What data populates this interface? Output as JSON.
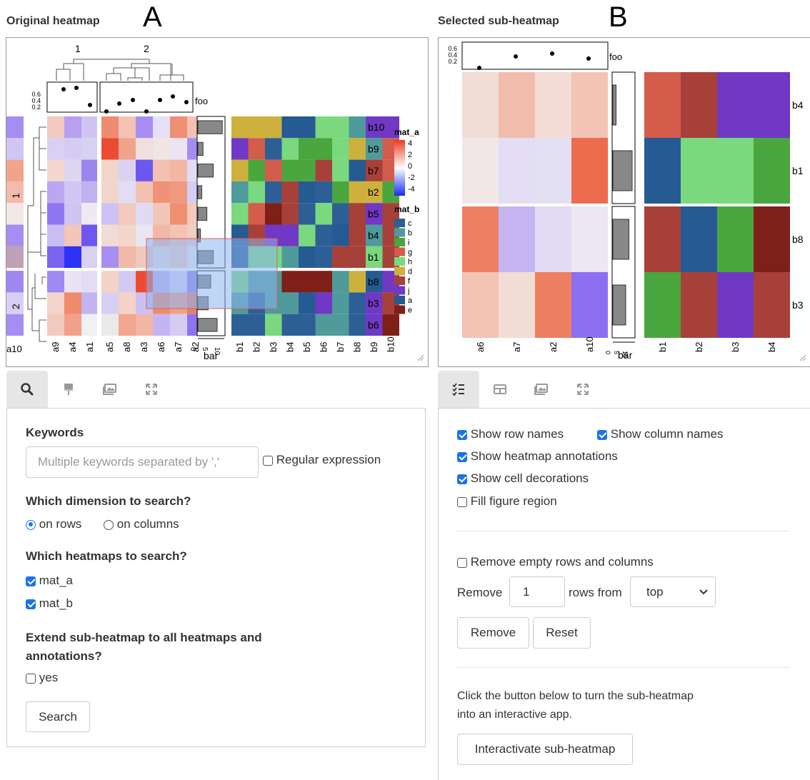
{
  "left": {
    "title": "Original heatmap",
    "panel_letter": "A",
    "tabs": [
      "search-icon",
      "brush-icon",
      "image-icon",
      "expand-icon"
    ],
    "keywords_label": "Keywords",
    "keywords_placeholder": "Multiple keywords separated by ','",
    "regex_label": "Regular expression",
    "dimension_label": "Which dimension to search?",
    "on_rows": "on rows",
    "on_columns": "on columns",
    "heatmaps_label": "Which heatmaps to search?",
    "mat_a": "mat_a",
    "mat_b": "mat_b",
    "extend_label_1": "Extend sub-heatmap to all heatmaps and",
    "extend_label_2": "annotations?",
    "yes": "yes",
    "search_button": "Search"
  },
  "right": {
    "title": "Selected sub-heatmap",
    "panel_letter": "B",
    "tabs": [
      "list-icon",
      "table-icon",
      "image-icon",
      "expand-icon"
    ],
    "show_row_names": "Show row names",
    "show_column_names": "Show column names",
    "show_heatmap_annotations": "Show heatmap annotations",
    "show_cell_decorations": "Show cell decorations",
    "fill_figure_region": "Fill figure region",
    "remove_empty": "Remove empty rows and columns",
    "remove_label": "Remove",
    "remove_value": "1",
    "rows_from": "rows from",
    "from_option": "top",
    "remove_button": "Remove",
    "reset_button": "Reset",
    "info_1": "Click the button below to turn the sub-heatmap",
    "info_2": "into an interactive app.",
    "interactivate_button": "Interactivate sub-heatmap"
  },
  "heatmap_a": {
    "col_split_labels": [
      "1",
      "2"
    ],
    "row_split_labels": [
      "1",
      "2"
    ],
    "foo_label": "foo",
    "foo_ticks": [
      "0.6",
      "0.4",
      "0.2"
    ],
    "bar_label": "bar",
    "bar_ticks": [
      "0",
      "5",
      "10"
    ],
    "cols_a": [
      "a9",
      "a4",
      "a1",
      "a5",
      "a8",
      "a3",
      "a6",
      "a7",
      "a2",
      "a10"
    ],
    "cols_b": [
      "b1",
      "b2",
      "b3",
      "b4",
      "b5",
      "b6",
      "b7",
      "b8",
      "b9",
      "b10"
    ],
    "rows": [
      "b10",
      "b9",
      "b7",
      "b2",
      "b5",
      "b4",
      "b1",
      "b8",
      "b3",
      "b6"
    ],
    "legend_a_title": "mat_a",
    "legend_a_ticks": [
      "4",
      "2",
      "0",
      "-2",
      "-4"
    ],
    "legend_b_title": "mat_b",
    "legend_b_items": [
      {
        "name": "c",
        "color": "#2d5f97"
      },
      {
        "name": "b",
        "color": "#4f9a9a"
      },
      {
        "name": "i",
        "color": "#4aa63e"
      },
      {
        "name": "g",
        "color": "#d35c4a"
      },
      {
        "name": "h",
        "color": "#7ad87e"
      },
      {
        "name": "d",
        "color": "#cdb13c"
      },
      {
        "name": "f",
        "color": "#a8403a"
      },
      {
        "name": "j",
        "color": "#7038c4"
      },
      {
        "name": "a",
        "color": "#265a92"
      },
      {
        "name": "e",
        "color": "#7e1f18"
      }
    ]
  },
  "heatmap_b": {
    "foo_label": "foo",
    "foo_ticks": [
      "0.6",
      "0.4",
      "0.2"
    ],
    "bar_label": "bar",
    "bar_ticks": [
      "0",
      "5",
      "10"
    ],
    "cols_a": [
      "a6",
      "a7",
      "a2",
      "a10"
    ],
    "cols_b": [
      "b1",
      "b2",
      "b3",
      "b4"
    ],
    "rows": [
      "b4",
      "b1",
      "b8",
      "b3"
    ]
  }
}
